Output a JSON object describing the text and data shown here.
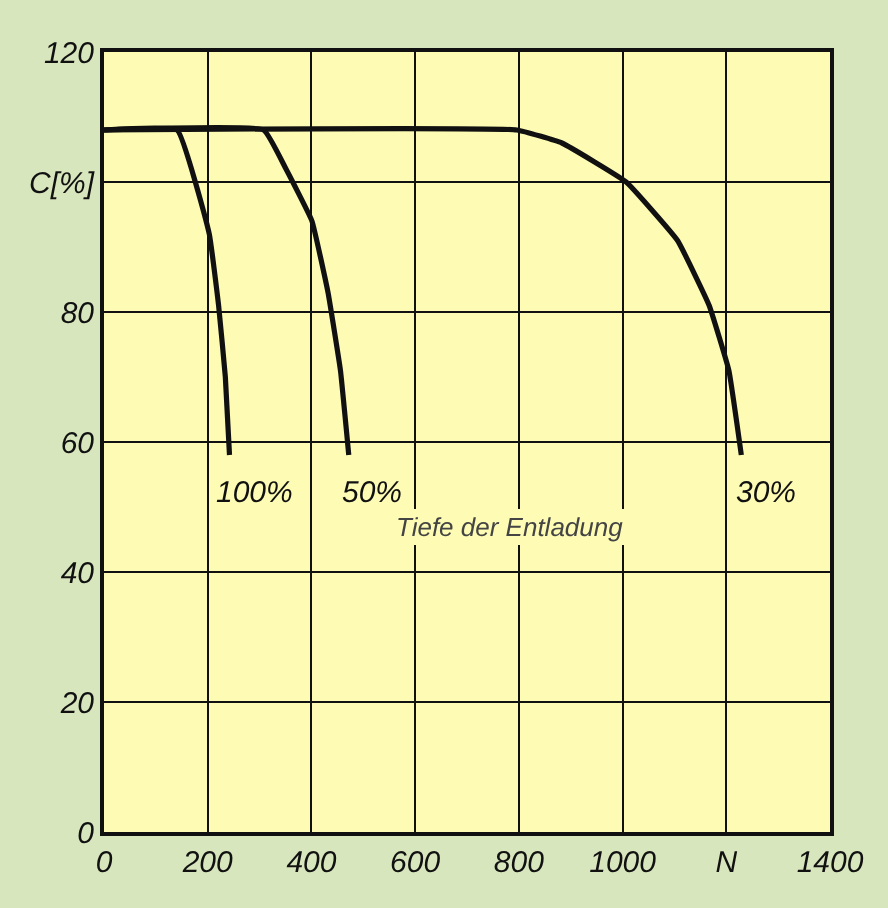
{
  "chart_data": {
    "type": "line",
    "xlim": [
      0,
      1400
    ],
    "ylim": [
      0,
      120
    ],
    "xticks": [
      0,
      200,
      400,
      600,
      800,
      1000,
      {
        "value": 1200,
        "label": "N"
      },
      1400
    ],
    "yticks": [
      0,
      20,
      40,
      60,
      80,
      {
        "value": 100,
        "label": "C[%]"
      },
      120
    ],
    "grid": true,
    "legend": false,
    "series": [
      {
        "name": "100%",
        "color": "#111111",
        "x": [
          0,
          141,
          203,
          221,
          234,
          242
        ],
        "values": [
          108,
          108,
          92,
          81,
          70,
          58
        ]
      },
      {
        "name": "50%",
        "color": "#111111",
        "x": [
          0,
          308,
          351,
          401,
          432,
          456,
          472
        ],
        "values": [
          108,
          108,
          102,
          94,
          83,
          71,
          58
        ]
      },
      {
        "name": "30%",
        "color": "#111111",
        "x": [
          0,
          796,
          883,
          1007,
          1106,
          1167,
          1205,
          1229
        ],
        "values": [
          108,
          108,
          106,
          100,
          91,
          81,
          71,
          58
        ]
      }
    ],
    "annotations": [
      "Tiefe der Entladung"
    ]
  }
}
